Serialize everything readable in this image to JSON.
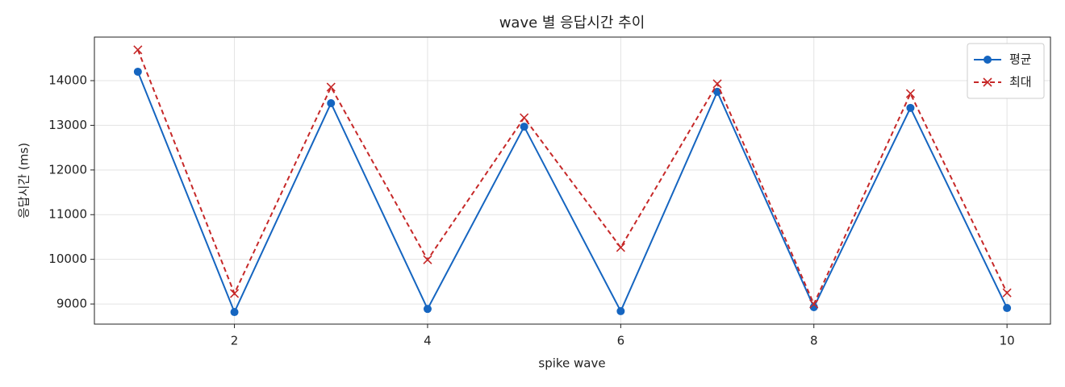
{
  "chart_data": {
    "type": "line",
    "title": "wave 별 응답시간 추이",
    "xlabel": "spike wave",
    "ylabel": "응답시간 (ms)",
    "x": [
      1,
      2,
      3,
      4,
      5,
      6,
      7,
      8,
      9,
      10
    ],
    "series": [
      {
        "name": "평균",
        "color": "#1565c0",
        "marker": "circle",
        "linestyle": "solid",
        "values": [
          14200,
          8820,
          13495,
          8890,
          12970,
          8840,
          13750,
          8930,
          13390,
          8910
        ]
      },
      {
        "name": "최대",
        "color": "#c62828",
        "marker": "x",
        "linestyle": "dashed",
        "values": [
          14690,
          9235,
          13855,
          9990,
          13170,
          10265,
          13930,
          9000,
          13710,
          9250
        ]
      }
    ],
    "xlim": [
      0.55,
      10.45
    ],
    "ylim": [
      8550,
      14975
    ],
    "xticks": [
      2,
      4,
      6,
      8,
      10
    ],
    "yticks": [
      9000,
      10000,
      11000,
      12000,
      13000,
      14000
    ],
    "grid": true,
    "legend": "upper right"
  }
}
